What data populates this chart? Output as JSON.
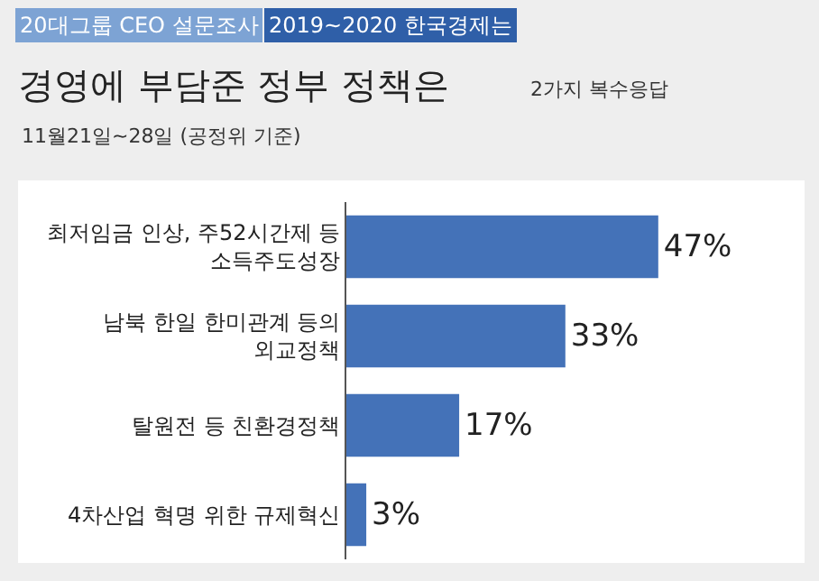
{
  "chart_data": {
    "type": "bar",
    "orientation": "horizontal",
    "title": "경영에 부담준 정부 정책은",
    "subtitle": "2가지 복수응답",
    "annotations": [
      "20대그룹 CEO 설문조사",
      "2019~2020 한국경제는",
      "11월21일~28일 (공정위 기준)"
    ],
    "categories": [
      "최저임금 인상, 주52시간제 등\n소득주도성장",
      "남북 한일 한미관계 등의\n외교정책",
      "탈원전 등 친환경정책",
      "4차산업 혁명 위한 규제혁신"
    ],
    "values": [
      47,
      33,
      17,
      3
    ],
    "value_labels": [
      "47%",
      "33%",
      "17%",
      "3%"
    ],
    "color": "#4472b8",
    "tick_labels": "y",
    "legend": false
  }
}
